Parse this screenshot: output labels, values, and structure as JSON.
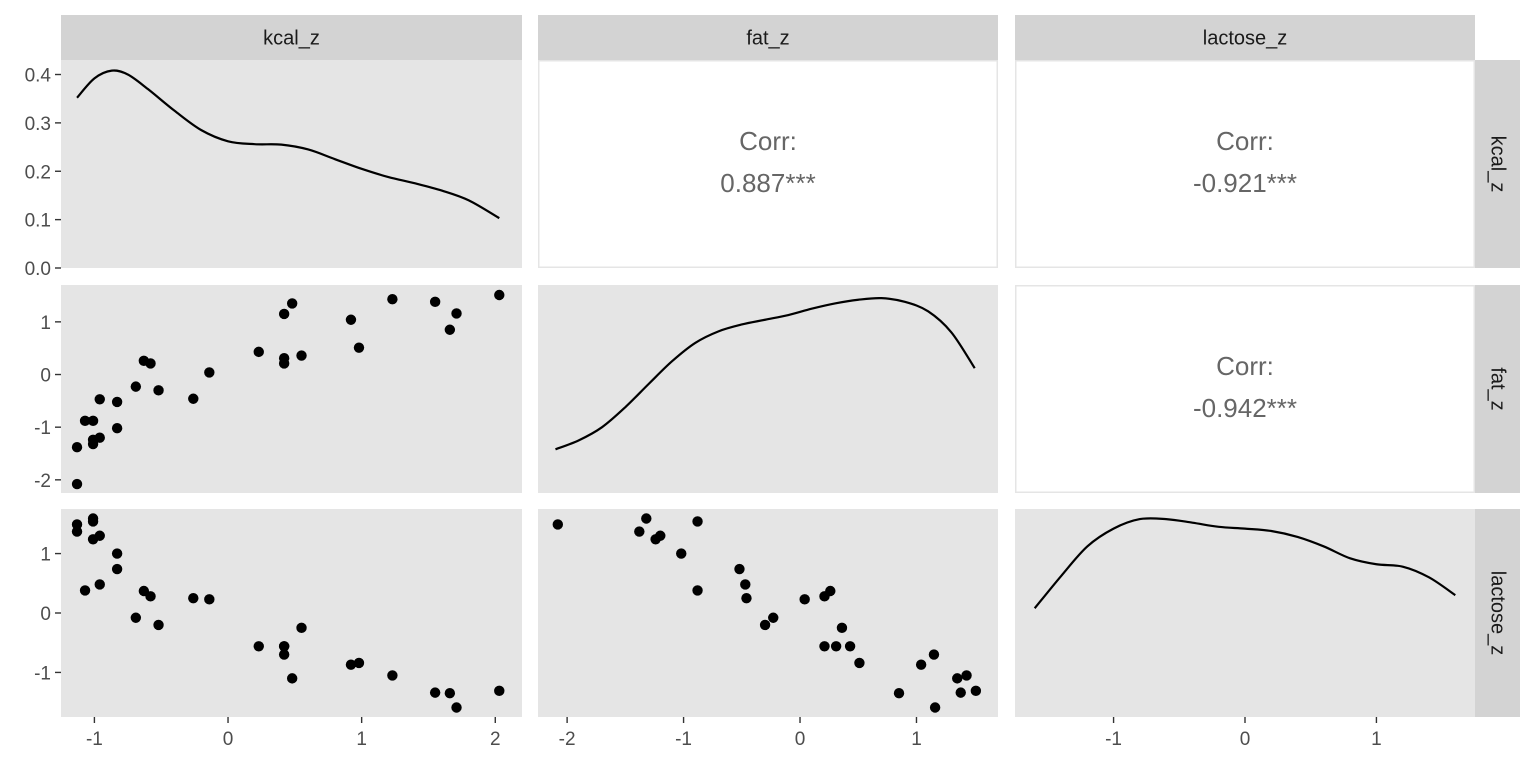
{
  "chart_data": {
    "type": "scatter",
    "variables": [
      "kcal_z",
      "fat_z",
      "lactose_z"
    ],
    "strip_labels": {
      "top": [
        "kcal_z",
        "fat_z",
        "lactose_z"
      ],
      "right": [
        "kcal_z",
        "fat_z",
        "lactose_z"
      ]
    },
    "x_axes": {
      "kcal_z": {
        "range": [
          -1.25,
          2.2
        ],
        "ticks": [
          -1,
          0,
          1,
          2
        ],
        "tick_labels": [
          "-1",
          "0",
          "1",
          "2"
        ]
      },
      "fat_z": {
        "range": [
          -2.25,
          1.7
        ],
        "ticks": [
          -2,
          -1,
          0,
          1
        ],
        "tick_labels": [
          "-2",
          "-1",
          "0",
          "1"
        ]
      },
      "lactose_z": {
        "range": [
          -1.75,
          1.75
        ],
        "ticks": [
          -1,
          0,
          1
        ],
        "tick_labels": [
          "-1",
          "0",
          "1"
        ]
      }
    },
    "y_axes": {
      "row0_density": {
        "range": [
          0.0,
          0.43
        ],
        "ticks": [
          0.0,
          0.1,
          0.2,
          0.3,
          0.4
        ],
        "tick_labels": [
          "0.0",
          "0.1",
          "0.2",
          "0.3",
          "0.4"
        ]
      },
      "fat_z": {
        "range": [
          -2.25,
          1.7
        ],
        "ticks": [
          -2,
          -1,
          0,
          1
        ],
        "tick_labels": [
          "-2",
          "-1",
          "0",
          "1"
        ]
      },
      "lactose_z": {
        "range": [
          -1.75,
          1.75
        ],
        "ticks": [
          -1,
          0,
          1
        ],
        "tick_labels": [
          "-1",
          "0",
          "1"
        ]
      }
    },
    "correlations": [
      {
        "row": 0,
        "col": 1,
        "label": "Corr:",
        "value": "0.887***"
      },
      {
        "row": 0,
        "col": 2,
        "label": "Corr:",
        "value": "-0.921***"
      },
      {
        "row": 1,
        "col": 2,
        "label": "Corr:",
        "value": "-0.942***"
      }
    ],
    "densities": {
      "kcal_z": {
        "x": [
          -1.13,
          -1.0,
          -0.87,
          -0.75,
          -0.6,
          -0.4,
          -0.2,
          0.0,
          0.2,
          0.4,
          0.6,
          0.8,
          1.0,
          1.2,
          1.4,
          1.6,
          1.8,
          2.03
        ],
        "y": [
          0.352,
          0.392,
          0.408,
          0.4,
          0.37,
          0.325,
          0.285,
          0.262,
          0.256,
          0.255,
          0.245,
          0.225,
          0.205,
          0.188,
          0.175,
          0.16,
          0.14,
          0.103
        ]
      },
      "fat_z": {
        "x": [
          -2.1,
          -1.9,
          -1.7,
          -1.5,
          -1.3,
          -1.1,
          -0.9,
          -0.7,
          -0.5,
          -0.3,
          -0.1,
          0.1,
          0.3,
          0.5,
          0.7,
          0.9,
          1.1,
          1.3,
          1.5
        ],
        "y": [
          -1.42,
          -1.25,
          -1.0,
          -0.62,
          -0.18,
          0.25,
          0.6,
          0.82,
          0.95,
          1.04,
          1.13,
          1.25,
          1.35,
          1.42,
          1.45,
          1.38,
          1.2,
          0.8,
          0.12
        ]
      },
      "lactose_z": {
        "x": [
          -1.6,
          -1.4,
          -1.2,
          -1.0,
          -0.8,
          -0.6,
          -0.4,
          -0.2,
          0.0,
          0.2,
          0.4,
          0.6,
          0.8,
          1.0,
          1.2,
          1.4,
          1.6
        ],
        "y": [
          0.08,
          0.62,
          1.12,
          1.42,
          1.58,
          1.58,
          1.52,
          1.45,
          1.42,
          1.38,
          1.28,
          1.12,
          0.92,
          0.82,
          0.78,
          0.6,
          0.3
        ]
      }
    },
    "points": [
      {
        "kcal_z": -1.13,
        "fat_z": -2.08,
        "lactose_z": 1.49
      },
      {
        "kcal_z": -1.13,
        "fat_z": -1.38,
        "lactose_z": 1.37
      },
      {
        "kcal_z": -1.07,
        "fat_z": -0.88,
        "lactose_z": 0.38
      },
      {
        "kcal_z": -1.01,
        "fat_z": -1.24,
        "lactose_z": 1.24
      },
      {
        "kcal_z": -1.01,
        "fat_z": -1.32,
        "lactose_z": 1.59
      },
      {
        "kcal_z": -1.01,
        "fat_z": -0.88,
        "lactose_z": 1.54
      },
      {
        "kcal_z": -0.96,
        "fat_z": -0.47,
        "lactose_z": 0.48
      },
      {
        "kcal_z": -0.96,
        "fat_z": -1.2,
        "lactose_z": 1.3
      },
      {
        "kcal_z": -0.83,
        "fat_z": -0.52,
        "lactose_z": 0.74
      },
      {
        "kcal_z": -0.83,
        "fat_z": -1.02,
        "lactose_z": 1.0
      },
      {
        "kcal_z": -0.69,
        "fat_z": -0.23,
        "lactose_z": -0.08
      },
      {
        "kcal_z": -0.63,
        "fat_z": 0.26,
        "lactose_z": 0.37
      },
      {
        "kcal_z": -0.58,
        "fat_z": 0.21,
        "lactose_z": 0.28
      },
      {
        "kcal_z": -0.52,
        "fat_z": -0.3,
        "lactose_z": -0.2
      },
      {
        "kcal_z": -0.26,
        "fat_z": -0.46,
        "lactose_z": 0.25
      },
      {
        "kcal_z": -0.14,
        "fat_z": 0.04,
        "lactose_z": 0.23
      },
      {
        "kcal_z": 0.23,
        "fat_z": 0.43,
        "lactose_z": -0.56
      },
      {
        "kcal_z": 0.42,
        "fat_z": 1.15,
        "lactose_z": -0.7
      },
      {
        "kcal_z": 0.42,
        "fat_z": 0.31,
        "lactose_z": -0.56
      },
      {
        "kcal_z": 0.42,
        "fat_z": 0.21,
        "lactose_z": -0.56
      },
      {
        "kcal_z": 0.48,
        "fat_z": 1.35,
        "lactose_z": -1.1
      },
      {
        "kcal_z": 0.55,
        "fat_z": 0.36,
        "lactose_z": -0.25
      },
      {
        "kcal_z": 0.92,
        "fat_z": 1.04,
        "lactose_z": -0.87
      },
      {
        "kcal_z": 0.98,
        "fat_z": 0.51,
        "lactose_z": -0.84
      },
      {
        "kcal_z": 1.23,
        "fat_z": 1.43,
        "lactose_z": -1.05
      },
      {
        "kcal_z": 1.55,
        "fat_z": 1.38,
        "lactose_z": -1.34
      },
      {
        "kcal_z": 1.66,
        "fat_z": 0.85,
        "lactose_z": -1.35
      },
      {
        "kcal_z": 1.71,
        "fat_z": 1.16,
        "lactose_z": -1.59
      },
      {
        "kcal_z": 2.03,
        "fat_z": 1.51,
        "lactose_z": -1.31
      }
    ],
    "grid": false,
    "legend": "none"
  }
}
